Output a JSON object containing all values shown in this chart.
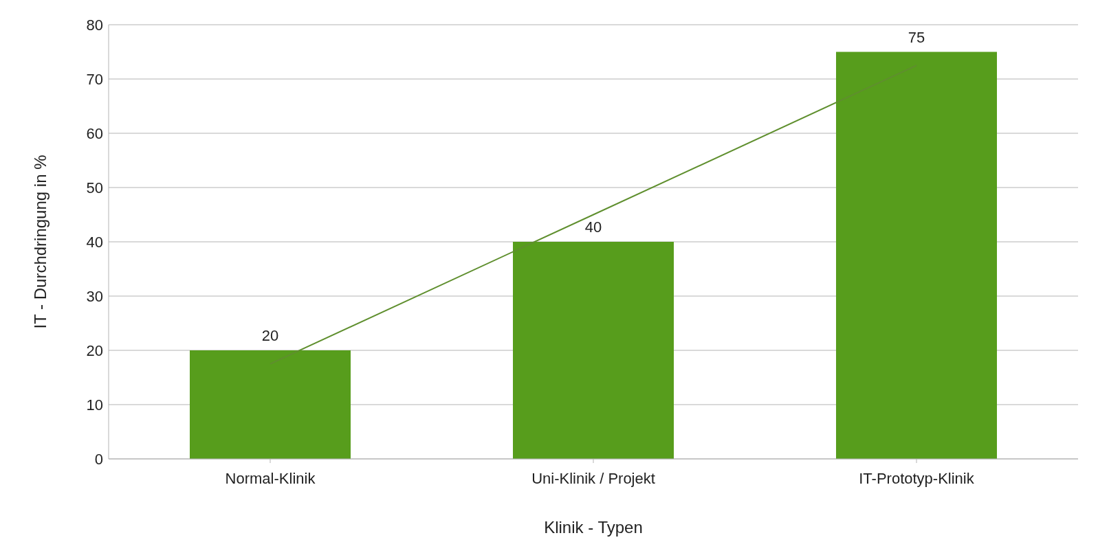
{
  "chart_data": {
    "type": "bar",
    "xlabel": "Klinik - Typen",
    "ylabel": "IT - Durchdringung in %",
    "categories": [
      "Normal-Klinik",
      "Uni-Klinik / Projekt",
      "IT-Prototyp-Klinik"
    ],
    "series": [
      {
        "type": "line",
        "color": "#5f8f2e",
        "values": [
          17.5,
          45,
          72.5
        ]
      },
      {
        "color": "#579d1c",
        "values": [
          20,
          40,
          75
        ],
        "value_labels": [
          "20",
          "40",
          "75"
        ]
      }
    ],
    "ylim": [
      0,
      80
    ],
    "yticks": [
      0,
      10,
      20,
      30,
      40,
      50,
      60,
      70,
      80
    ],
    "grid": "y",
    "legend": false
  }
}
